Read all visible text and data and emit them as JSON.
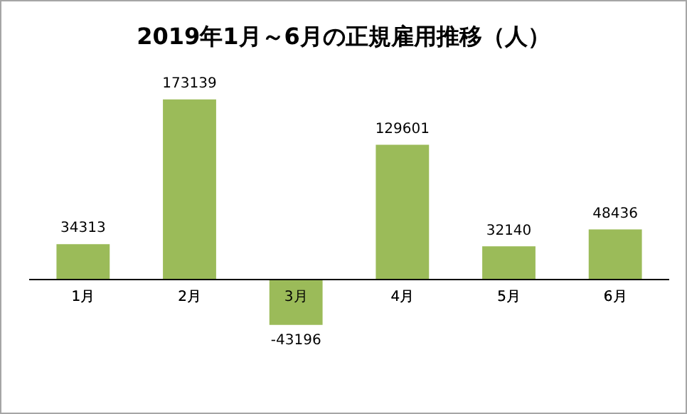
{
  "chart_data": {
    "type": "bar",
    "title": "2019年1月～6月の正規雇用推移（人）",
    "categories": [
      "1月",
      "2月",
      "3月",
      "4月",
      "5月",
      "6月"
    ],
    "values": [
      34313,
      173139,
      -43196,
      129601,
      32140,
      48436
    ],
    "color": "#9bbb59",
    "tick_labels": "x",
    "grid": false,
    "legend": false,
    "data_labels": true
  }
}
